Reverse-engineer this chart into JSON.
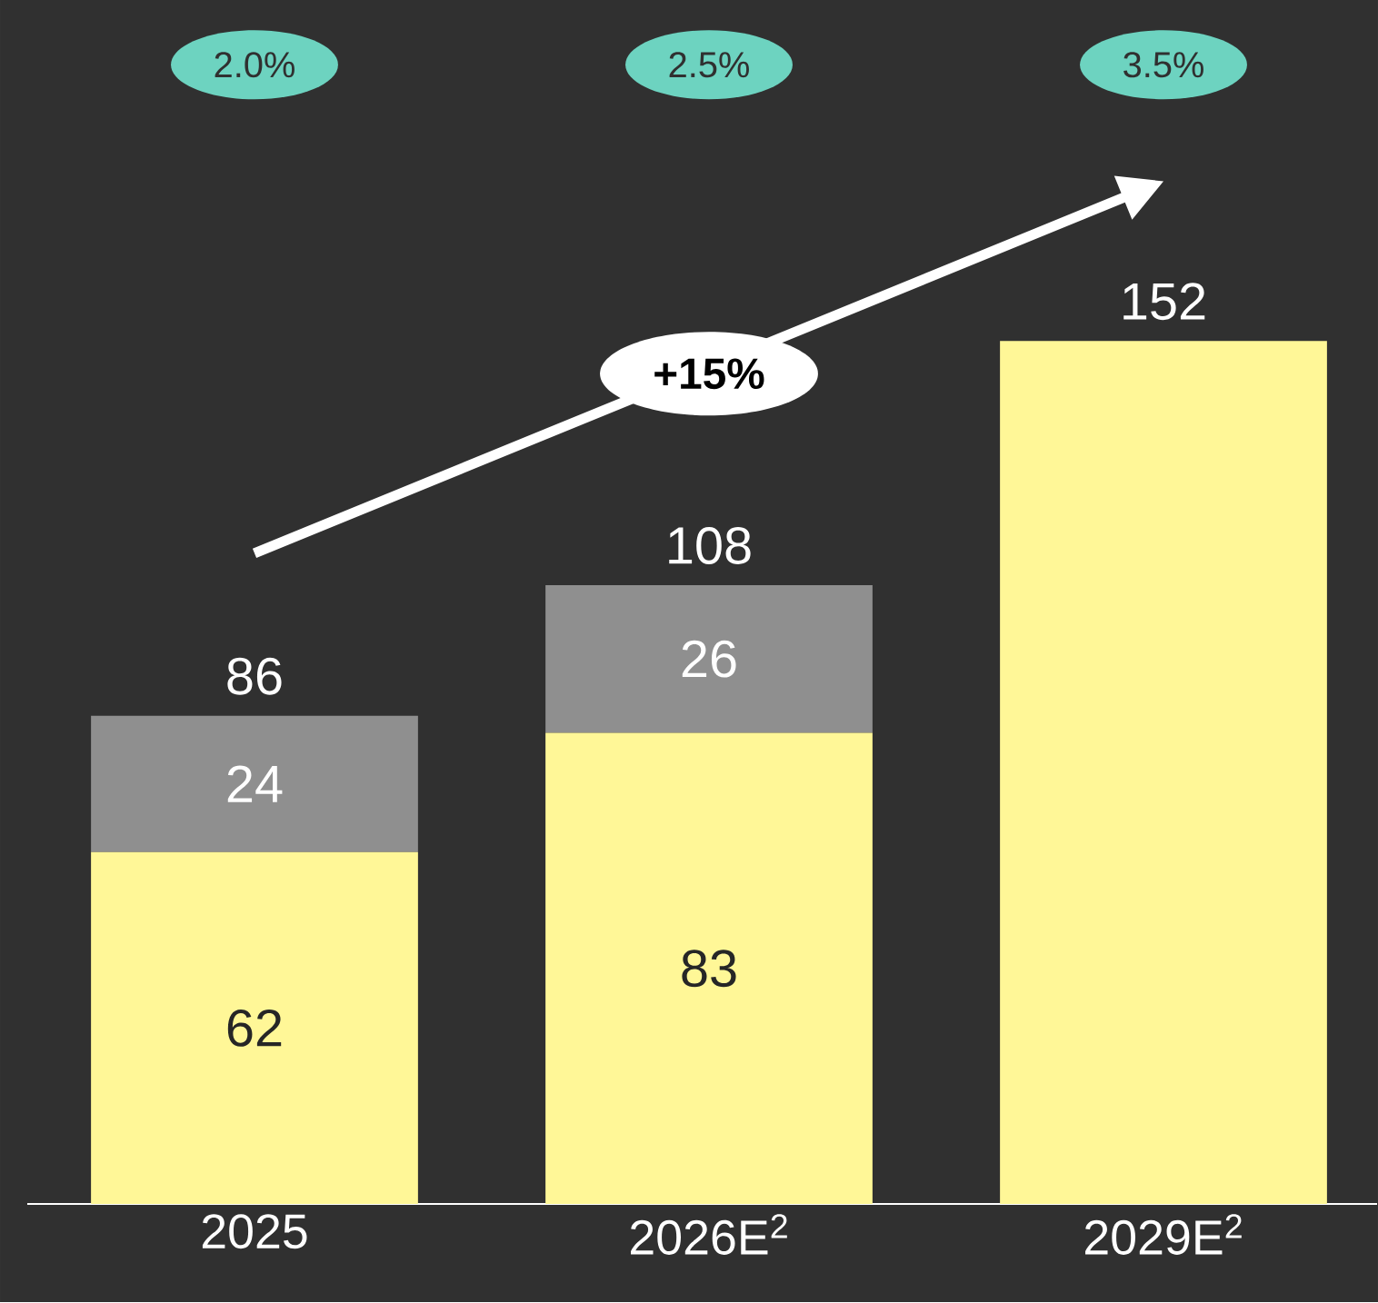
{
  "chart_data": {
    "type": "bar",
    "stacked": true,
    "categories": [
      "2025",
      "2026E$^{2}$",
      "2029E$^{2}$"
    ],
    "series": [
      {
        "color": "#fff797",
        "values": [
          62,
          83,
          152
        ],
        "value_labels": [
          "62",
          "83",
          null
        ]
      },
      {
        "color": "#8f8f8f",
        "values": [
          24,
          26,
          null
        ],
        "value_labels": [
          "24",
          "26",
          null
        ]
      }
    ],
    "totals": [
      "86",
      "108",
      "152"
    ],
    "annotations": [
      "2.0%",
      "2.5%",
      "3.5%",
      "+15%"
    ],
    "tick_labels": "x"
  }
}
